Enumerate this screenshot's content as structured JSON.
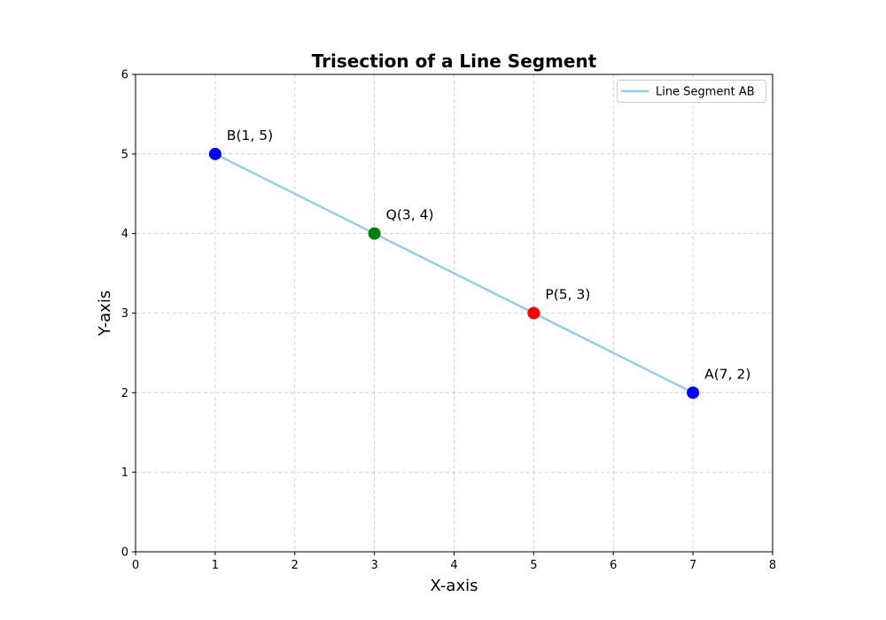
{
  "chart_data": {
    "type": "line",
    "title": "Trisection of a Line Segment",
    "xlabel": "X-axis",
    "ylabel": "Y-axis",
    "xlim": [
      0,
      8
    ],
    "ylim": [
      0,
      6
    ],
    "xticks": [
      "0",
      "1",
      "2",
      "3",
      "4",
      "5",
      "6",
      "7",
      "8"
    ],
    "yticks": [
      "0",
      "1",
      "2",
      "3",
      "4",
      "5",
      "6"
    ],
    "grid": true,
    "legend_position": "top-right",
    "series": [
      {
        "name": "Line Segment AB",
        "color": "#87ceeb",
        "x": [
          7,
          1
        ],
        "y": [
          2,
          5
        ]
      }
    ],
    "points": [
      {
        "label": "A(7, 2)",
        "x": 7,
        "y": 2,
        "color": "#0000ff"
      },
      {
        "label": "B(1, 5)",
        "x": 1,
        "y": 5,
        "color": "#0000ff"
      },
      {
        "label": "P(5, 3)",
        "x": 5,
        "y": 3,
        "color": "#ff0000"
      },
      {
        "label": "Q(3, 4)",
        "x": 3,
        "y": 4,
        "color": "#008000"
      }
    ]
  }
}
